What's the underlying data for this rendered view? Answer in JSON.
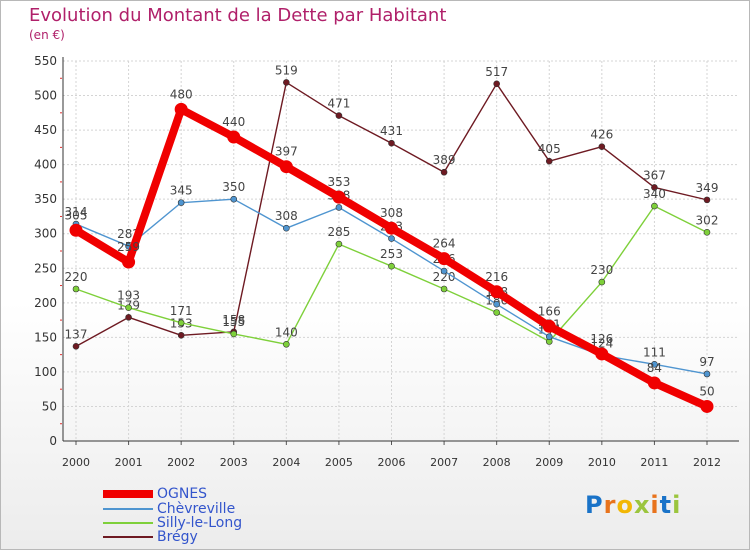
{
  "header": {
    "title": "Evolution du Montant de la Dette par Habitant",
    "subtitle": "(en €)"
  },
  "logo": {
    "text": "Proxiti",
    "colors": [
      "#1a73c8",
      "#e8731c",
      "#f2b705",
      "#9bc53d",
      "#e8731c",
      "#1a73c8",
      "#9bc53d"
    ]
  },
  "chart_data": {
    "type": "line",
    "title": "Evolution du Montant de la Dette par Habitant",
    "ylabel": "(en €)",
    "xlabel": "",
    "categories": [
      "2000",
      "2001",
      "2002",
      "2003",
      "2004",
      "2005",
      "2006",
      "2007",
      "2008",
      "2009",
      "2010",
      "2011",
      "2012"
    ],
    "ylim": [
      0,
      550
    ],
    "yticks": [
      0,
      50,
      100,
      150,
      200,
      250,
      300,
      350,
      400,
      450,
      500,
      550
    ],
    "grid": true,
    "legend_position": "bottom-left",
    "series": [
      {
        "name": "Brégy",
        "color": "#6e1a22",
        "values": [
          137,
          179,
          153,
          158,
          519,
          471,
          431,
          389,
          517,
          405,
          426,
          367,
          349
        ]
      },
      {
        "name": "Silly-le-Long",
        "color": "#7ed03a",
        "values": [
          220,
          193,
          171,
          155,
          140,
          285,
          253,
          220,
          186,
          144,
          230,
          340,
          302
        ]
      },
      {
        "name": "Chèvreville",
        "color": "#4f95d0",
        "values": [
          314,
          282,
          345,
          350,
          308,
          338,
          293,
          246,
          198,
          151,
          124,
          111,
          97
        ]
      },
      {
        "name": "OGNES",
        "color": "#f00000",
        "values": [
          305,
          259,
          480,
          440,
          397,
          353,
          308,
          264,
          216,
          166,
          126,
          84,
          50
        ]
      }
    ],
    "legend_order": [
      "OGNES",
      "Chèvreville",
      "Silly-le-Long",
      "Brégy"
    ]
  }
}
